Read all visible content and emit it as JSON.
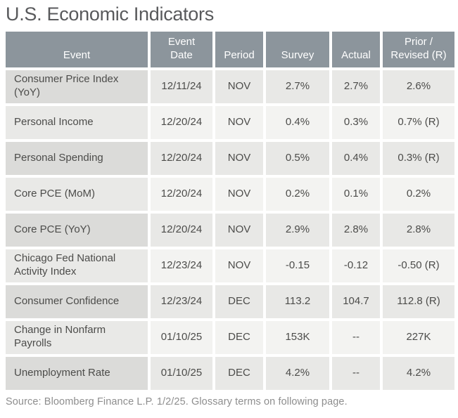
{
  "title": "U.S. Economic Indicators",
  "table": {
    "columns": [
      "Event",
      "Event Date",
      "Period",
      "Survey",
      "Actual",
      "Prior / Revised (R)"
    ],
    "rows": [
      {
        "event": "Consumer Price Index (YoY)",
        "date": "12/11/24",
        "period": "NOV",
        "survey": "2.7%",
        "actual": "2.7%",
        "prior": "2.6%"
      },
      {
        "event": "Personal Income",
        "date": "12/20/24",
        "period": "NOV",
        "survey": "0.4%",
        "actual": "0.3%",
        "prior": "0.7% (R)"
      },
      {
        "event": "Personal Spending",
        "date": "12/20/24",
        "period": "NOV",
        "survey": "0.5%",
        "actual": "0.4%",
        "prior": "0.3% (R)"
      },
      {
        "event": "Core PCE (MoM)",
        "date": "12/20/24",
        "period": "NOV",
        "survey": "0.2%",
        "actual": "0.1%",
        "prior": "0.2%"
      },
      {
        "event": "Core PCE (YoY)",
        "date": "12/20/24",
        "period": "NOV",
        "survey": "2.9%",
        "actual": "2.8%",
        "prior": "2.8%"
      },
      {
        "event": "Chicago Fed National Activity Index",
        "date": "12/23/24",
        "period": "NOV",
        "survey": "-0.15",
        "actual": "-0.12",
        "prior": "-0.50 (R)"
      },
      {
        "event": "Consumer Confidence",
        "date": "12/23/24",
        "period": "DEC",
        "survey": "113.2",
        "actual": "104.7",
        "prior": "112.8 (R)"
      },
      {
        "event": "Change in Nonfarm Payrolls",
        "date": "01/10/25",
        "period": "DEC",
        "survey": "153K",
        "actual": "--",
        "prior": "227K"
      },
      {
        "event": "Unemployment Rate",
        "date": "01/10/25",
        "period": "DEC",
        "survey": "4.2%",
        "actual": "--",
        "prior": "4.2%"
      }
    ]
  },
  "footer": "Source: Bloomberg Finance L.P. 1/2/25. Glossary terms on following page.",
  "colors": {
    "header_background": "#8c959c",
    "header_text": "#ffffff",
    "row_dark_event": "#dbdbd9",
    "row_dark_data": "#e8e8e6",
    "row_light_event": "#e9e9e7",
    "row_light_data": "#f3f3f1",
    "body_text": "#4c4c4a",
    "title_text": "#595a5c",
    "source_text": "#8e8e8e"
  }
}
